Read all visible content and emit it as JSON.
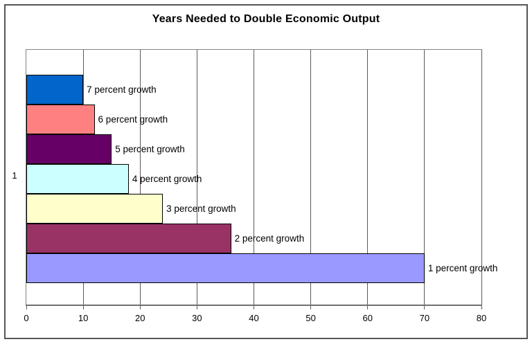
{
  "chart_data": {
    "type": "bar",
    "orientation": "horizontal",
    "title": "Years Needed to Double Economic Output",
    "category_tick_label": "1",
    "categories": [
      "1"
    ],
    "series": [
      {
        "name": "7 percent growth",
        "value": 10,
        "color": "#0066CC"
      },
      {
        "name": "6 percent growth",
        "value": 12,
        "color": "#FF8080"
      },
      {
        "name": "5 percent growth",
        "value": 15,
        "color": "#660066"
      },
      {
        "name": "4 percent growth",
        "value": 18,
        "color": "#CCFFFF"
      },
      {
        "name": "3 percent growth",
        "value": 24,
        "color": "#FFFFCC"
      },
      {
        "name": "2 percent growth",
        "value": 36,
        "color": "#993366"
      },
      {
        "name": "1 percent growth",
        "value": 70,
        "color": "#9999FF"
      }
    ],
    "xlabel": "",
    "ylabel": "",
    "xlim": [
      0,
      80
    ],
    "x_ticks": [
      "0",
      "10",
      "20",
      "30",
      "40",
      "50",
      "60",
      "70",
      "80"
    ],
    "grid": "vertical major gridlines every 10",
    "legend_position": "none",
    "data_labels": "series name at outside end of each bar",
    "colors": {
      "plot_background": "#FFFFFF",
      "bar_border": "#000000",
      "gridline": "#5A5A5A",
      "plot_border": "#848484",
      "frame_border": "#565656",
      "text": "#000000"
    }
  }
}
